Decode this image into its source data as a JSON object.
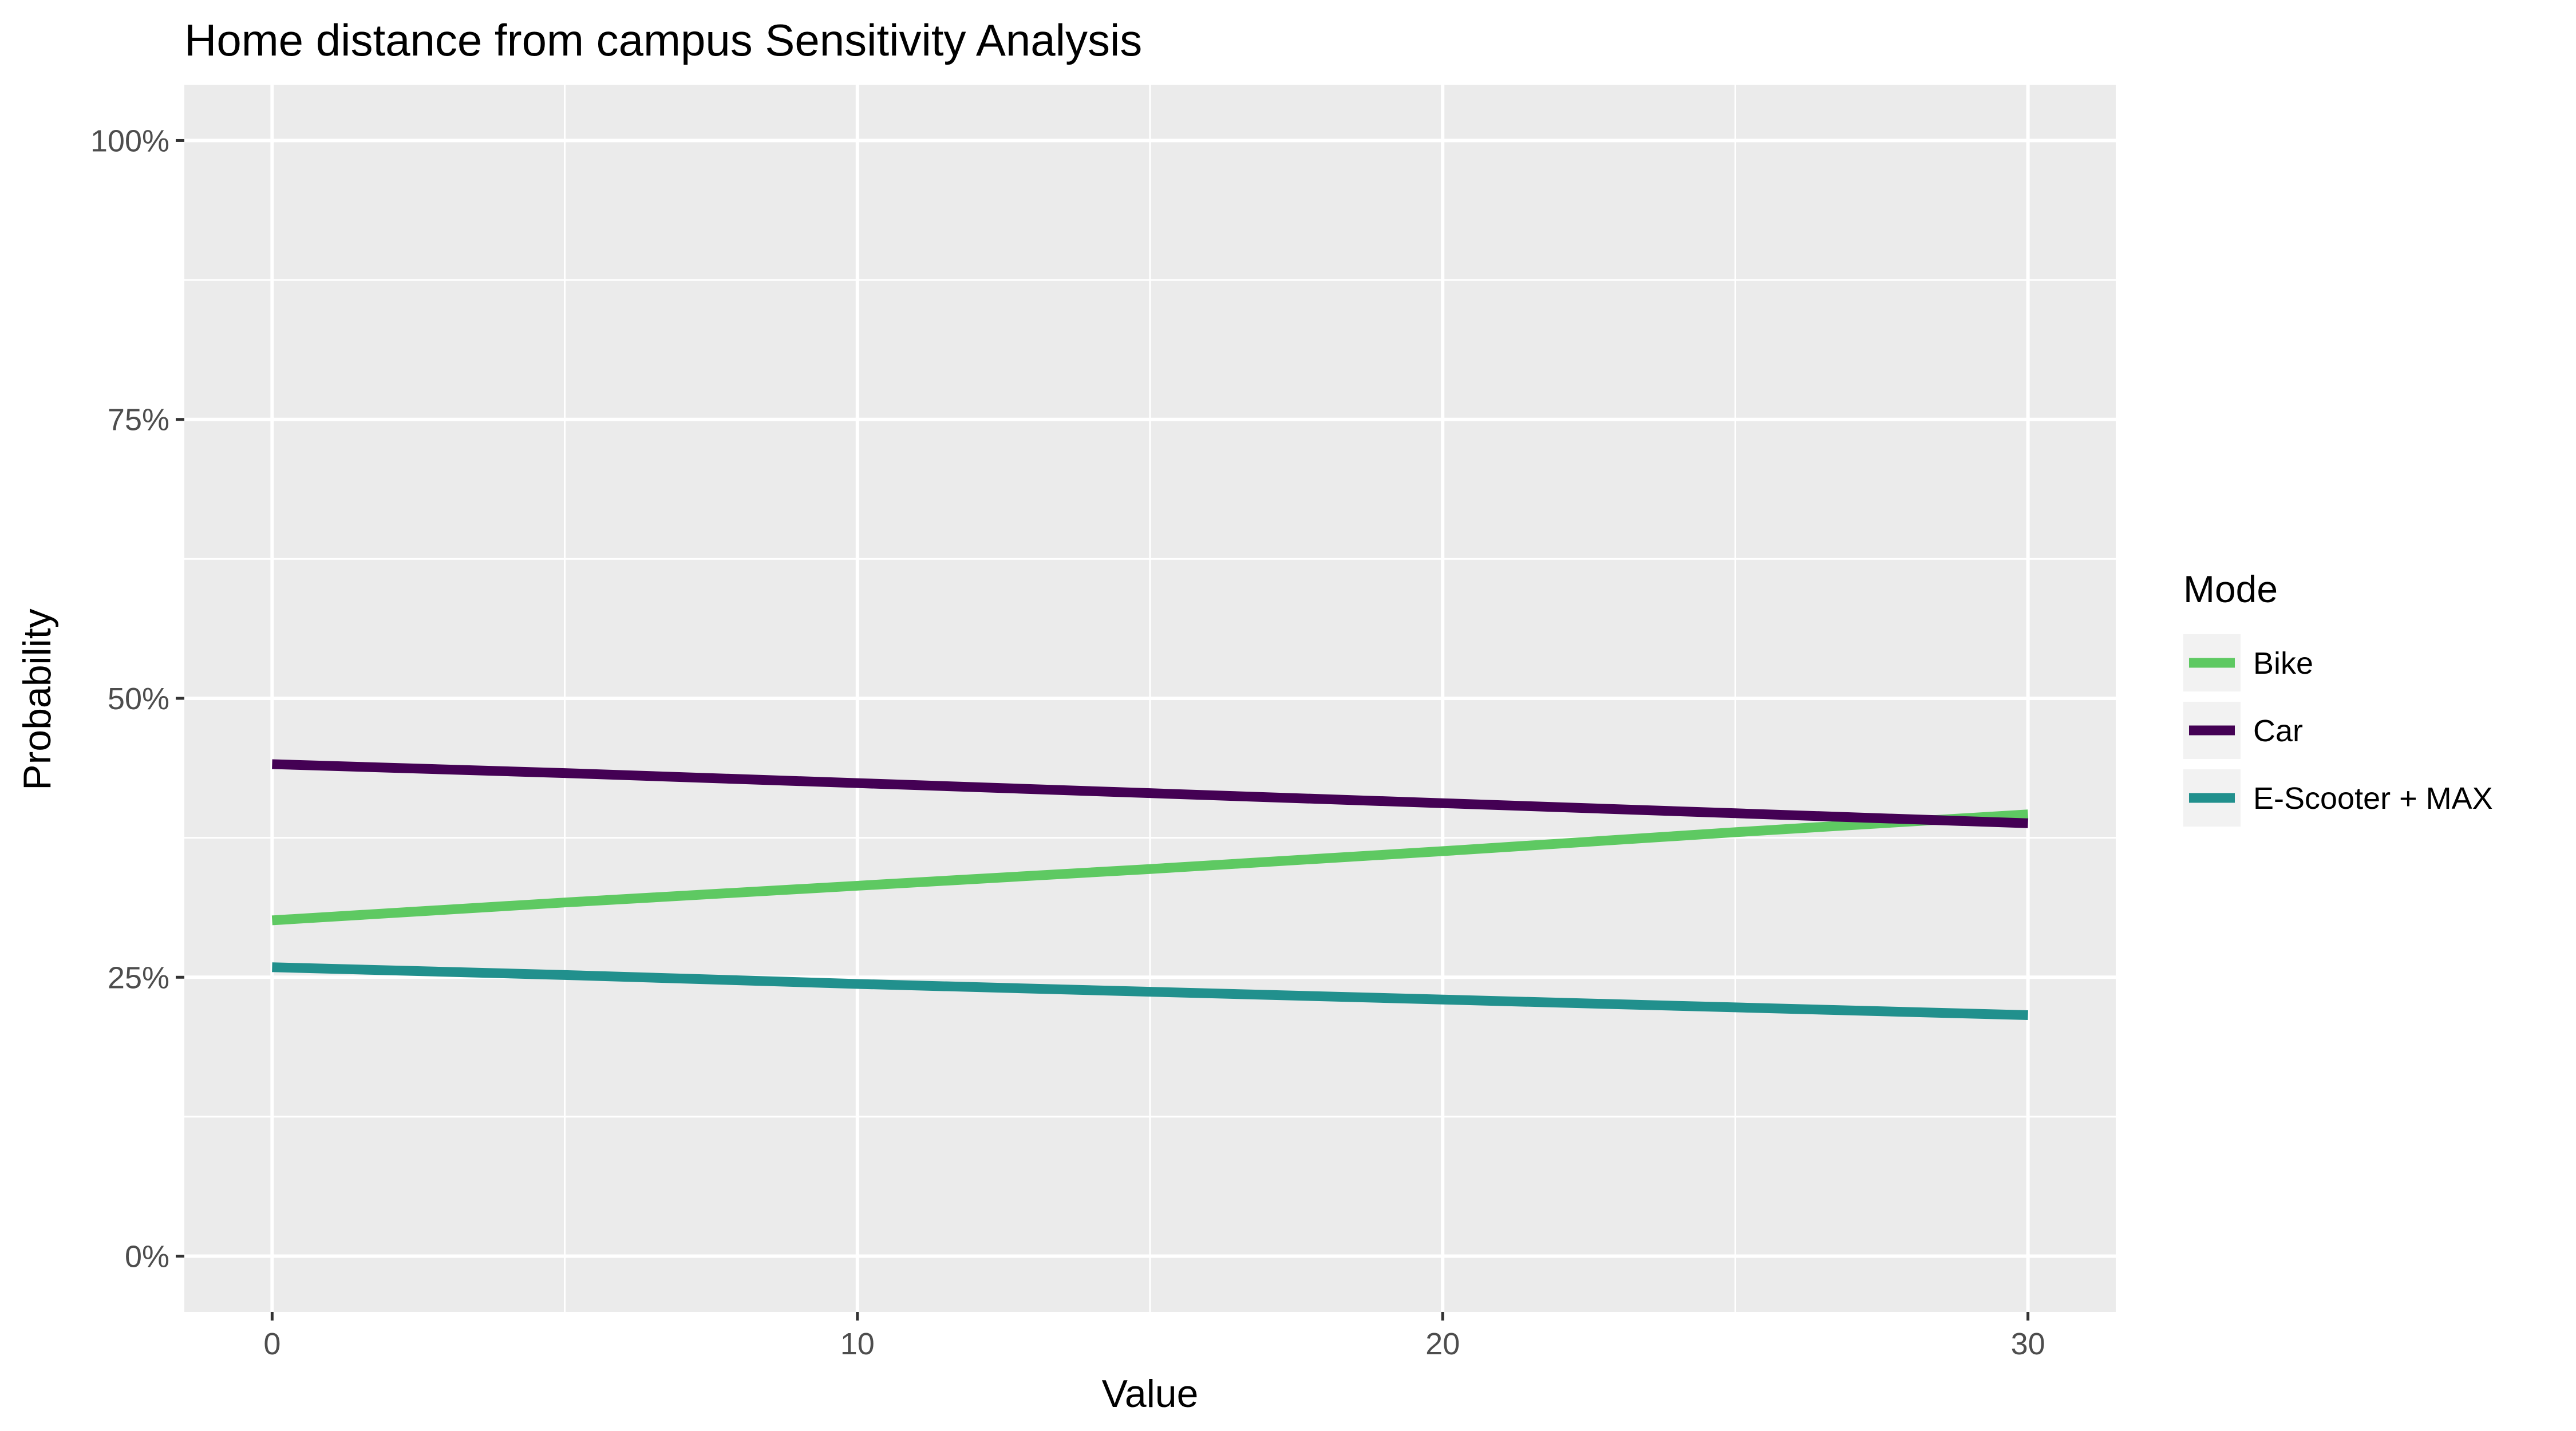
{
  "chart_data": {
    "type": "line",
    "title": "Home distance from campus Sensitivity Analysis",
    "xlabel": "Value",
    "ylabel": "Probability",
    "x_ticks": [
      "0",
      "10",
      "20",
      "30"
    ],
    "y_ticks": [
      "0%",
      "25%",
      "50%",
      "75%",
      "100%"
    ],
    "xlim": [
      -1.5,
      31.5
    ],
    "ylim": [
      -0.05,
      1.05
    ],
    "grid": true,
    "legend": {
      "title": "Mode",
      "position": "right"
    },
    "series": [
      {
        "name": "Bike",
        "color": "#5ec962",
        "x": [
          0,
          5,
          10,
          15,
          20,
          25,
          30
        ],
        "y": [
          0.301,
          0.317,
          0.332,
          0.347,
          0.363,
          0.38,
          0.396
        ]
      },
      {
        "name": "Car",
        "color": "#440154",
        "x": [
          0,
          5,
          10,
          15,
          20,
          25,
          30
        ],
        "y": [
          0.441,
          0.433,
          0.424,
          0.415,
          0.406,
          0.397,
          0.388
        ]
      },
      {
        "name": "E-Scooter + MAX",
        "color": "#21908d",
        "x": [
          0,
          5,
          10,
          15,
          20,
          25,
          30
        ],
        "y": [
          0.259,
          0.252,
          0.244,
          0.237,
          0.23,
          0.223,
          0.216
        ]
      }
    ]
  }
}
